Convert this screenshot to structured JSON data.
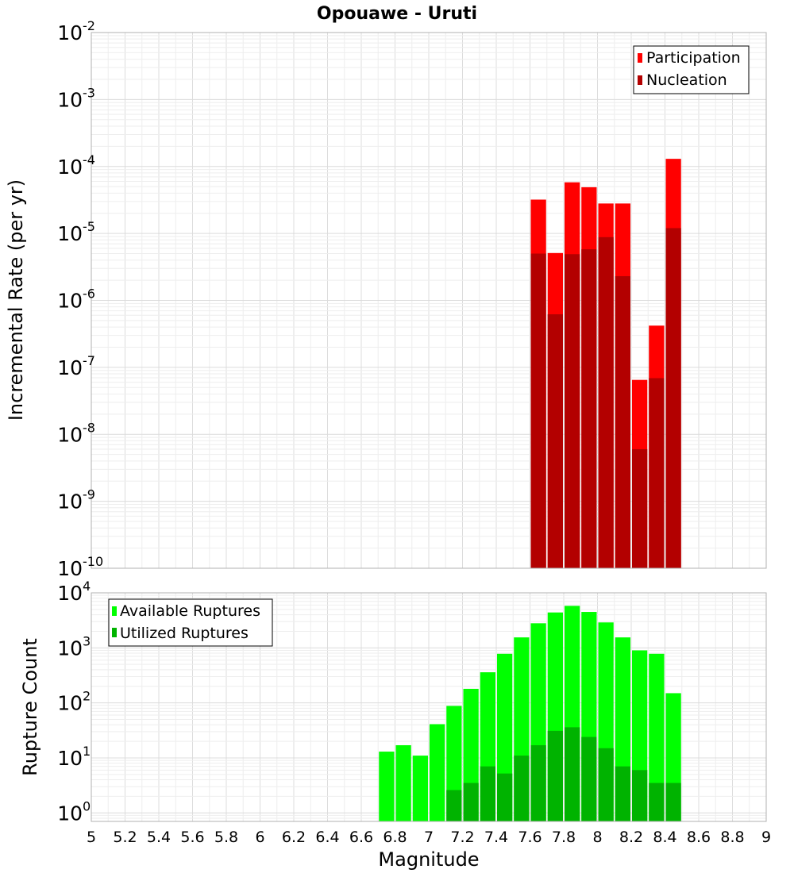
{
  "chart_data": [
    {
      "type": "bar",
      "title": "Opouawe - Uruti",
      "xlabel": "",
      "ylabel": "Incremental Rate (per yr)",
      "yscale": "log",
      "ylim": [
        1e-10,
        0.01
      ],
      "xlim": [
        5.0,
        9.0
      ],
      "bin_width": 0.1,
      "grid": true,
      "legend_position": "top-right",
      "y_ticks": [
        {
          "base": "10",
          "exp": "-10",
          "value": 1e-10
        },
        {
          "base": "10",
          "exp": "-9",
          "value": 1e-09
        },
        {
          "base": "10",
          "exp": "-8",
          "value": 1e-08
        },
        {
          "base": "10",
          "exp": "-7",
          "value": 1e-07
        },
        {
          "base": "10",
          "exp": "-6",
          "value": 1e-06
        },
        {
          "base": "10",
          "exp": "-5",
          "value": 1e-05
        },
        {
          "base": "10",
          "exp": "-4",
          "value": 0.0001
        },
        {
          "base": "10",
          "exp": "-3",
          "value": 0.001
        },
        {
          "base": "10",
          "exp": "-2",
          "value": 0.01
        }
      ],
      "series": [
        {
          "name": "Participation",
          "color": "#ff0000",
          "x": [
            7.65,
            7.75,
            7.85,
            7.95,
            8.05,
            8.15,
            8.25,
            8.35,
            8.45
          ],
          "values": [
            3.2e-05,
            5.1e-06,
            5.8e-05,
            4.9e-05,
            2.8e-05,
            2.8e-05,
            6.5e-08,
            4.2e-07,
            0.00013
          ]
        },
        {
          "name": "Nucleation",
          "color": "#b30000",
          "x": [
            7.65,
            7.75,
            7.85,
            7.95,
            8.05,
            8.15,
            8.25,
            8.35,
            8.45
          ],
          "values": [
            5e-06,
            6.2e-07,
            4.9e-06,
            5.8e-06,
            8.8e-06,
            2.3e-06,
            6e-09,
            6.9e-08,
            1.2e-05
          ]
        }
      ]
    },
    {
      "type": "bar",
      "title": "",
      "xlabel": "Magnitude",
      "ylabel": "Rupture Count",
      "yscale": "log",
      "ylim": [
        0.7,
        10000
      ],
      "xlim": [
        5.0,
        9.0
      ],
      "bin_width": 0.1,
      "grid": true,
      "legend_position": "top-left",
      "x_ticks": [
        "5",
        "5.2",
        "5.4",
        "5.6",
        "5.8",
        "6",
        "6.2",
        "6.4",
        "6.6",
        "6.8",
        "7",
        "7.2",
        "7.4",
        "7.6",
        "7.8",
        "8",
        "8.2",
        "8.4",
        "8.6",
        "8.8",
        "9"
      ],
      "y_ticks": [
        {
          "base": "10",
          "exp": "0",
          "value": 1
        },
        {
          "base": "10",
          "exp": "1",
          "value": 10
        },
        {
          "base": "10",
          "exp": "2",
          "value": 100
        },
        {
          "base": "10",
          "exp": "3",
          "value": 1000
        },
        {
          "base": "10",
          "exp": "4",
          "value": 10000
        }
      ],
      "series": [
        {
          "name": "Available Ruptures",
          "color": "#00ff00",
          "x": [
            6.75,
            6.85,
            6.95,
            7.05,
            7.15,
            7.25,
            7.35,
            7.45,
            7.55,
            7.65,
            7.75,
            7.85,
            7.95,
            8.05,
            8.15,
            8.25,
            8.35,
            8.45
          ],
          "values": [
            13,
            17,
            11,
            41,
            88,
            180,
            360,
            780,
            1550,
            2800,
            4400,
            5800,
            4500,
            2900,
            1550,
            900,
            780,
            150
          ]
        },
        {
          "name": "Utilized Ruptures",
          "color": "#00b300",
          "x": [
            7.15,
            7.25,
            7.35,
            7.45,
            7.55,
            7.65,
            7.75,
            7.85,
            7.95,
            8.05,
            8.15,
            8.25,
            8.35,
            8.45
          ],
          "values": [
            2.6,
            3.5,
            7,
            5.2,
            11,
            17,
            31,
            36,
            24,
            15,
            7,
            6,
            3.5,
            3.5
          ]
        }
      ]
    }
  ]
}
